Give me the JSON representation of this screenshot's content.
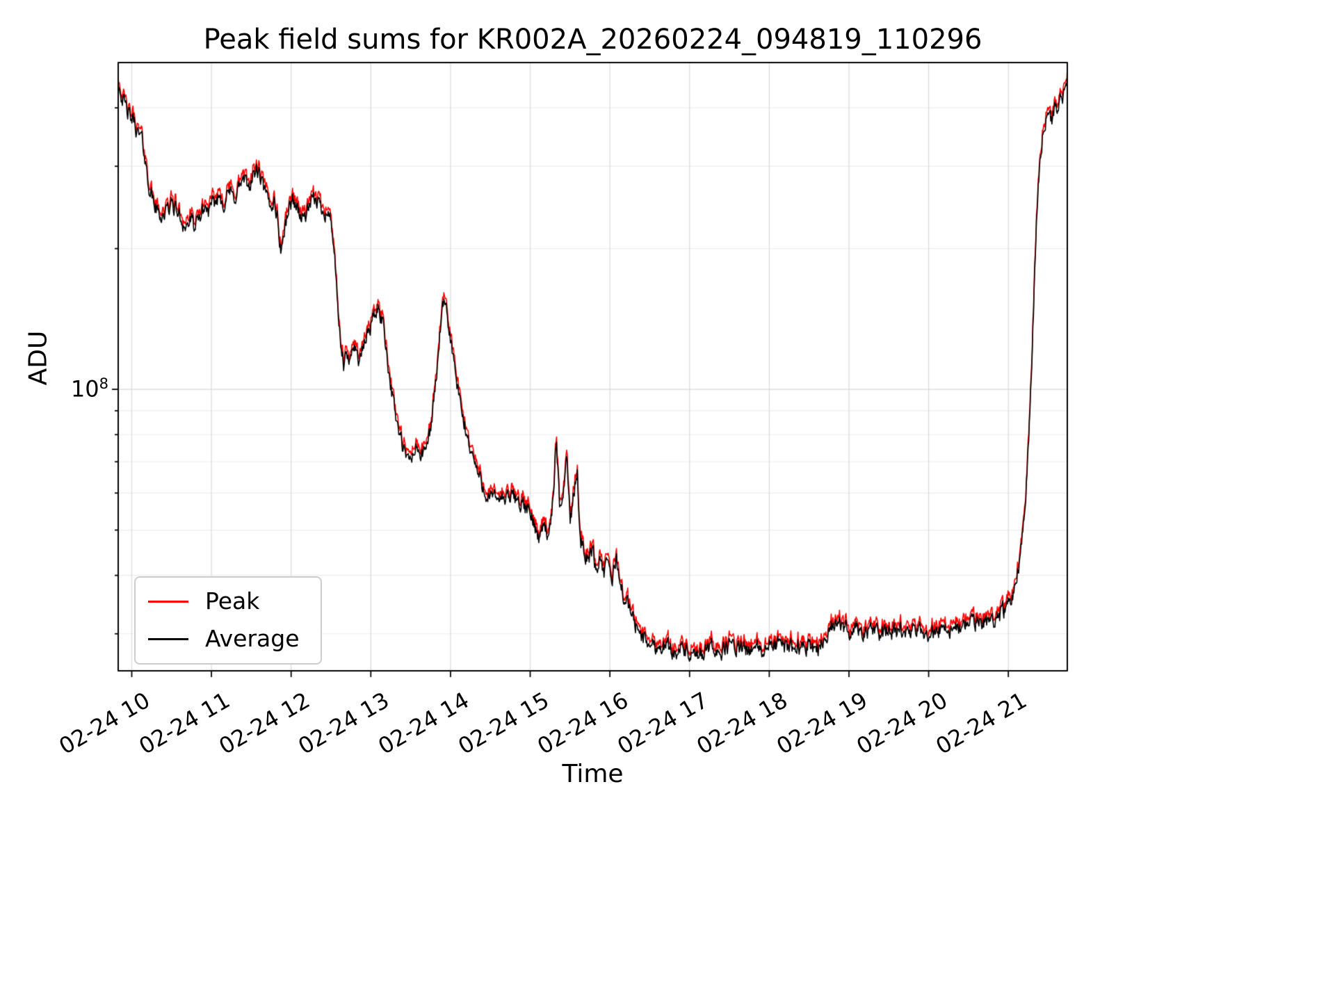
{
  "chart_data": {
    "type": "line",
    "title": "Peak field sums for KR002A_20260224_094819_110296",
    "xlabel": "Time",
    "ylabel": "ADU",
    "y_scale": "log",
    "y_tick_label": {
      "base": "10",
      "exp": "8"
    },
    "xlim": [
      9.83,
      21.74
    ],
    "ylim": [
      25000000.0,
      500000000.0
    ],
    "grid": true,
    "x_ticks": [
      {
        "value": 10,
        "label": "02-24 10"
      },
      {
        "value": 11,
        "label": "02-24 11"
      },
      {
        "value": 12,
        "label": "02-24 12"
      },
      {
        "value": 13,
        "label": "02-24 13"
      },
      {
        "value": 14,
        "label": "02-24 14"
      },
      {
        "value": 15,
        "label": "02-24 15"
      },
      {
        "value": 16,
        "label": "02-24 16"
      },
      {
        "value": 17,
        "label": "02-24 17"
      },
      {
        "value": 18,
        "label": "02-24 18"
      },
      {
        "value": 19,
        "label": "02-24 19"
      },
      {
        "value": 20,
        "label": "02-24 20"
      },
      {
        "value": 21,
        "label": "02-24 21"
      }
    ],
    "legend": {
      "position": "lower left",
      "entries": [
        {
          "label": "Peak",
          "color": "#ff0000"
        },
        {
          "label": "Average",
          "color": "#000000"
        }
      ]
    },
    "colors": {
      "grid_major": "#d9d9d9",
      "grid_minor": "#ededed",
      "axis": "#000000",
      "background": "#ffffff"
    },
    "series": [
      {
        "name": "Peak",
        "color": "#ff0000",
        "factor": 1.018,
        "jitter": true
      },
      {
        "name": "Average",
        "color": "#000000",
        "factor": 1.0,
        "jitter": false
      }
    ],
    "noise": {
      "seed": 42,
      "amp": 0.14,
      "smooth": 0.5,
      "peak_extra": 0.02
    },
    "keypoints": [
      [
        9.83,
        460000000.0
      ],
      [
        9.86,
        435000000.0
      ],
      [
        9.9,
        410000000.0
      ],
      [
        9.94,
        395000000.0
      ],
      [
        9.98,
        380000000.0
      ],
      [
        10.03,
        375000000.0
      ],
      [
        10.08,
        350000000.0
      ],
      [
        10.12,
        345000000.0
      ],
      [
        10.16,
        320000000.0
      ],
      [
        10.2,
        280000000.0
      ],
      [
        10.26,
        255000000.0
      ],
      [
        10.32,
        240000000.0
      ],
      [
        10.38,
        235000000.0
      ],
      [
        10.44,
        240000000.0
      ],
      [
        10.5,
        250000000.0
      ],
      [
        10.56,
        242000000.0
      ],
      [
        10.62,
        230000000.0
      ],
      [
        10.68,
        222000000.0
      ],
      [
        10.74,
        230000000.0
      ],
      [
        10.8,
        220000000.0
      ],
      [
        10.86,
        235000000.0
      ],
      [
        10.92,
        245000000.0
      ],
      [
        10.98,
        240000000.0
      ],
      [
        11.04,
        250000000.0
      ],
      [
        11.1,
        260000000.0
      ],
      [
        11.16,
        250000000.0
      ],
      [
        11.22,
        265000000.0
      ],
      [
        11.28,
        255000000.0
      ],
      [
        11.34,
        270000000.0
      ],
      [
        11.4,
        280000000.0
      ],
      [
        11.46,
        270000000.0
      ],
      [
        11.52,
        285000000.0
      ],
      [
        11.57,
        295000000.0
      ],
      [
        11.62,
        280000000.0
      ],
      [
        11.68,
        260000000.0
      ],
      [
        11.74,
        245000000.0
      ],
      [
        11.79,
        255000000.0
      ],
      [
        11.83,
        230000000.0
      ],
      [
        11.87,
        198000000.0
      ],
      [
        11.91,
        215000000.0
      ],
      [
        11.96,
        240000000.0
      ],
      [
        12.02,
        255000000.0
      ],
      [
        12.08,
        245000000.0
      ],
      [
        12.14,
        230000000.0
      ],
      [
        12.2,
        240000000.0
      ],
      [
        12.26,
        250000000.0
      ],
      [
        12.32,
        255000000.0
      ],
      [
        12.38,
        245000000.0
      ],
      [
        12.44,
        240000000.0
      ],
      [
        12.5,
        230000000.0
      ],
      [
        12.54,
        200000000.0
      ],
      [
        12.58,
        150000000.0
      ],
      [
        12.62,
        125000000.0
      ],
      [
        12.66,
        112000000.0
      ],
      [
        12.7,
        118000000.0
      ],
      [
        12.74,
        112000000.0
      ],
      [
        12.78,
        128000000.0
      ],
      [
        12.82,
        120000000.0
      ],
      [
        12.86,
        115000000.0
      ],
      [
        12.92,
        125000000.0
      ],
      [
        12.98,
        135000000.0
      ],
      [
        13.04,
        144000000.0
      ],
      [
        13.1,
        148000000.0
      ],
      [
        13.16,
        138000000.0
      ],
      [
        13.22,
        112000000.0
      ],
      [
        13.28,
        94000000.0
      ],
      [
        13.34,
        83000000.0
      ],
      [
        13.4,
        75000000.0
      ],
      [
        13.46,
        70000000.0
      ],
      [
        13.52,
        72000000.0
      ],
      [
        13.58,
        75000000.0
      ],
      [
        13.64,
        72000000.0
      ],
      [
        13.7,
        75000000.0
      ],
      [
        13.76,
        85000000.0
      ],
      [
        13.82,
        105000000.0
      ],
      [
        13.88,
        140000000.0
      ],
      [
        13.92,
        152000000.0
      ],
      [
        13.96,
        142000000.0
      ],
      [
        14.02,
        122000000.0
      ],
      [
        14.08,
        102000000.0
      ],
      [
        14.14,
        89000000.0
      ],
      [
        14.21,
        79000000.0
      ],
      [
        14.29,
        71000000.0
      ],
      [
        14.37,
        64000000.0
      ],
      [
        14.45,
        60000000.0
      ],
      [
        14.53,
        58000000.0
      ],
      [
        14.61,
        59000000.0
      ],
      [
        14.69,
        58000000.0
      ],
      [
        14.77,
        59000000.0
      ],
      [
        14.85,
        58000000.0
      ],
      [
        14.93,
        56000000.0
      ],
      [
        15.0,
        54000000.0
      ],
      [
        15.06,
        51000000.0
      ],
      [
        15.12,
        48000000.0
      ],
      [
        15.18,
        53000000.0
      ],
      [
        15.23,
        47000000.0
      ],
      [
        15.28,
        56000000.0
      ],
      [
        15.33,
        78000000.0
      ],
      [
        15.37,
        54000000.0
      ],
      [
        15.42,
        62000000.0
      ],
      [
        15.46,
        73000000.0
      ],
      [
        15.5,
        52000000.0
      ],
      [
        15.55,
        60000000.0
      ],
      [
        15.59,
        67000000.0
      ],
      [
        15.63,
        48000000.0
      ],
      [
        15.68,
        45000000.0
      ],
      [
        15.73,
        43000000.0
      ],
      [
        15.78,
        46000000.0
      ],
      [
        15.83,
        41000000.0
      ],
      [
        15.88,
        44000000.0
      ],
      [
        15.93,
        40000000.0
      ],
      [
        15.98,
        43000000.0
      ],
      [
        16.03,
        39000000.0
      ],
      [
        16.08,
        44000000.0
      ],
      [
        16.13,
        38000000.0
      ],
      [
        16.18,
        36000000.0
      ],
      [
        16.24,
        34000000.0
      ],
      [
        16.3,
        32000000.0
      ],
      [
        16.36,
        30500000.0
      ],
      [
        16.44,
        29000000.0
      ],
      [
        16.52,
        28500000.0
      ],
      [
        16.6,
        28000000.0
      ],
      [
        16.7,
        28500000.0
      ],
      [
        16.8,
        27500000.0
      ],
      [
        16.9,
        28000000.0
      ],
      [
        17.0,
        27000000.0
      ],
      [
        17.1,
        26500000.0
      ],
      [
        17.2,
        27500000.0
      ],
      [
        17.3,
        28000000.0
      ],
      [
        17.4,
        27500000.0
      ],
      [
        17.5,
        28500000.0
      ],
      [
        17.6,
        28000000.0
      ],
      [
        17.7,
        27500000.0
      ],
      [
        17.8,
        28000000.0
      ],
      [
        17.9,
        27500000.0
      ],
      [
        18.0,
        28000000.0
      ],
      [
        18.1,
        28500000.0
      ],
      [
        18.2,
        28000000.0
      ],
      [
        18.3,
        28500000.0
      ],
      [
        18.4,
        28000000.0
      ],
      [
        18.5,
        28500000.0
      ],
      [
        18.6,
        28000000.0
      ],
      [
        18.7,
        29000000.0
      ],
      [
        18.76,
        31000000.0
      ],
      [
        18.84,
        31500000.0
      ],
      [
        18.92,
        31000000.0
      ],
      [
        19.0,
        30500000.0
      ],
      [
        19.1,
        31000000.0
      ],
      [
        19.2,
        30000000.0
      ],
      [
        19.3,
        30500000.0
      ],
      [
        19.4,
        30000000.0
      ],
      [
        19.5,
        30500000.0
      ],
      [
        19.6,
        30000000.0
      ],
      [
        19.7,
        30500000.0
      ],
      [
        19.8,
        30000000.0
      ],
      [
        19.9,
        30500000.0
      ],
      [
        20.0,
        30000000.0
      ],
      [
        20.1,
        30500000.0
      ],
      [
        20.2,
        31000000.0
      ],
      [
        20.3,
        30500000.0
      ],
      [
        20.4,
        31000000.0
      ],
      [
        20.5,
        31500000.0
      ],
      [
        20.6,
        31500000.0
      ],
      [
        20.7,
        32000000.0
      ],
      [
        20.8,
        32000000.0
      ],
      [
        20.9,
        33000000.0
      ],
      [
        21.0,
        34500000.0
      ],
      [
        21.08,
        38000000.0
      ],
      [
        21.14,
        43000000.0
      ],
      [
        21.19,
        52000000.0
      ],
      [
        21.23,
        65000000.0
      ],
      [
        21.27,
        90000000.0
      ],
      [
        21.31,
        140000000.0
      ],
      [
        21.35,
        220000000.0
      ],
      [
        21.39,
        300000000.0
      ],
      [
        21.43,
        350000000.0
      ],
      [
        21.47,
        370000000.0
      ],
      [
        21.51,
        390000000.0
      ],
      [
        21.55,
        375000000.0
      ],
      [
        21.59,
        410000000.0
      ],
      [
        21.63,
        395000000.0
      ],
      [
        21.67,
        435000000.0
      ],
      [
        21.71,
        420000000.0
      ],
      [
        21.74,
        460000000.0
      ]
    ]
  }
}
